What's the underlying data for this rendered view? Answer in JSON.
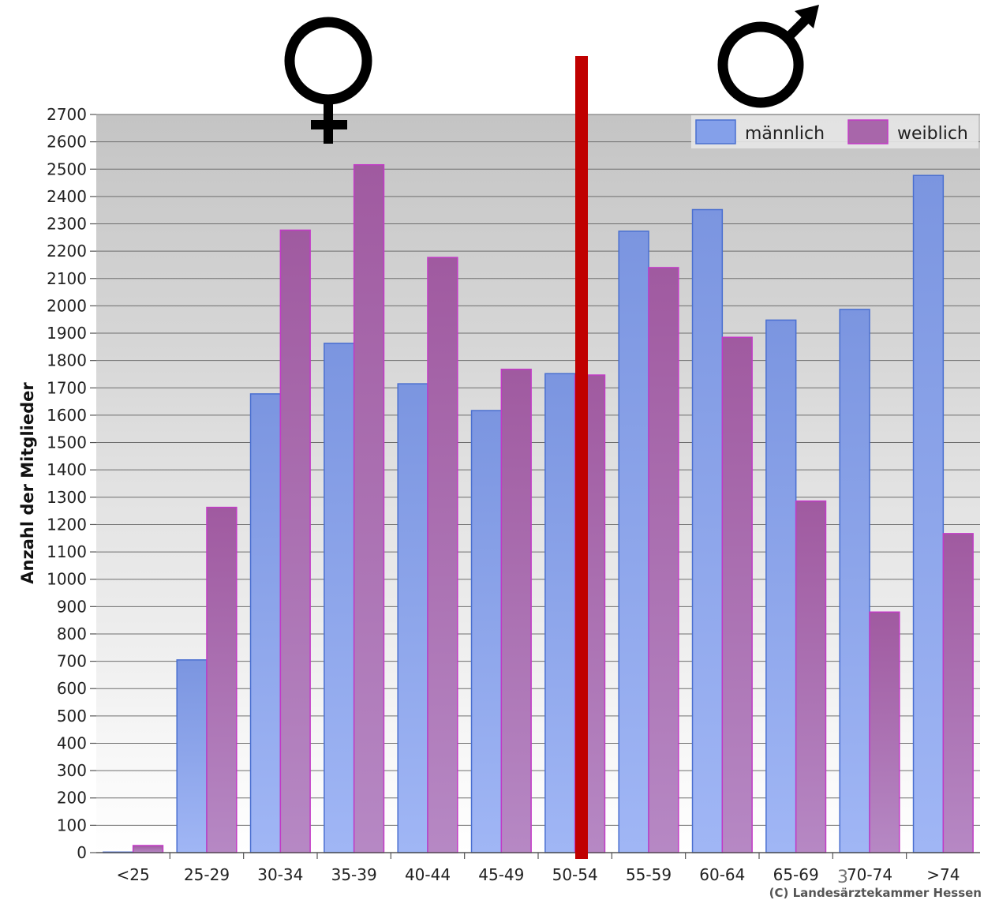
{
  "chart_data": {
    "type": "bar",
    "categories": [
      "<25",
      "25-29",
      "30-34",
      "35-39",
      "40-44",
      "45-49",
      "50-54",
      "55-59",
      "60-64",
      "65-69",
      "70-74",
      ">74"
    ],
    "series": [
      {
        "name": "männlich",
        "color": "#7b9be6",
        "values": [
          2,
          705,
          1678,
          1863,
          1715,
          1617,
          1752,
          2273,
          2352,
          1948,
          1987,
          2477
        ]
      },
      {
        "name": "weiblich",
        "color": "#a866aa",
        "values": [
          26,
          1263,
          2277,
          2516,
          2177,
          1768,
          1747,
          2140,
          1885,
          1286,
          880,
          1167
        ]
      }
    ],
    "ylabel": "Anzahl der Mitglieder",
    "xlabel": "",
    "ylim": [
      0,
      2700
    ],
    "ytick_step": 100,
    "grid": true,
    "legend": "top-right"
  },
  "annotations": {
    "female_symbol": "♀",
    "male_symbol": "♂",
    "divider_color": "#c00000",
    "copyright": "(C) Landesärztekammer Hessen",
    "page_number": "3"
  }
}
